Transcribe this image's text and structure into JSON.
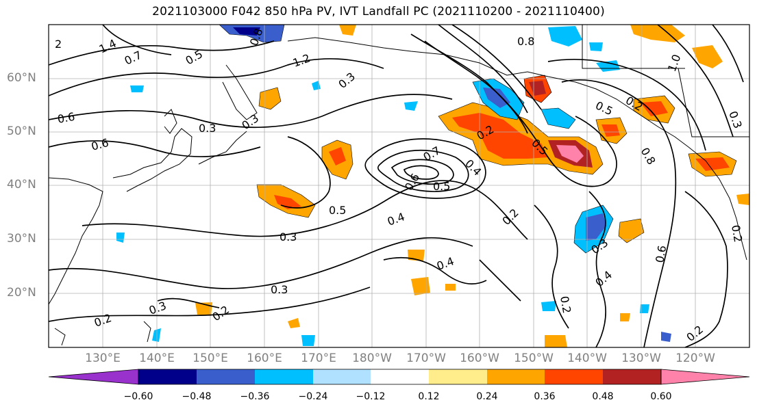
{
  "title": "2021103000 F042 850 hPa PV, IVT Landfall PC (2021110200 - 2021110400)",
  "lat_labels": [
    "60°N",
    "50°N",
    "40°N",
    "30°N",
    "20°N"
  ],
  "lon_labels": [
    "130°E",
    "140°E",
    "150°E",
    "160°E",
    "170°E",
    "180°W",
    "170°W",
    "160°W",
    "150°W",
    "140°W",
    "130°W",
    "120°W"
  ],
  "colorbar": {
    "colors": [
      "#9932cc",
      "#00008b",
      "#3a5fcd",
      "#00bfff",
      "#b0e2ff",
      "#ffffff",
      "#ffec8b",
      "#ffa500",
      "#ff4500",
      "#b22222",
      "#ff82ab"
    ],
    "tick_labels": [
      "−0.60",
      "−0.48",
      "−0.36",
      "−0.24",
      "−0.12",
      "0.12",
      "0.24",
      "0.36",
      "0.48",
      "0.60"
    ]
  },
  "contour_labels": [
    "2",
    "1.4",
    "0.7",
    "0.5",
    "1.2",
    "0.8",
    "0.6",
    "0.6",
    "0.3",
    "0.3",
    "0.2",
    "0.8",
    "0.5",
    "0.2",
    "1.0",
    "0.6",
    "0.5",
    "0.5",
    "0.4",
    "0.3",
    "0.3",
    "0.2",
    "0.3",
    "0.2",
    "0.4",
    "0.2",
    "0.5",
    "0.3",
    "0.4",
    "0.8",
    "0.2",
    "0.6",
    "0.2",
    "0.3",
    "0.7",
    "0.4",
    "0.3",
    "0.2"
  ]
}
